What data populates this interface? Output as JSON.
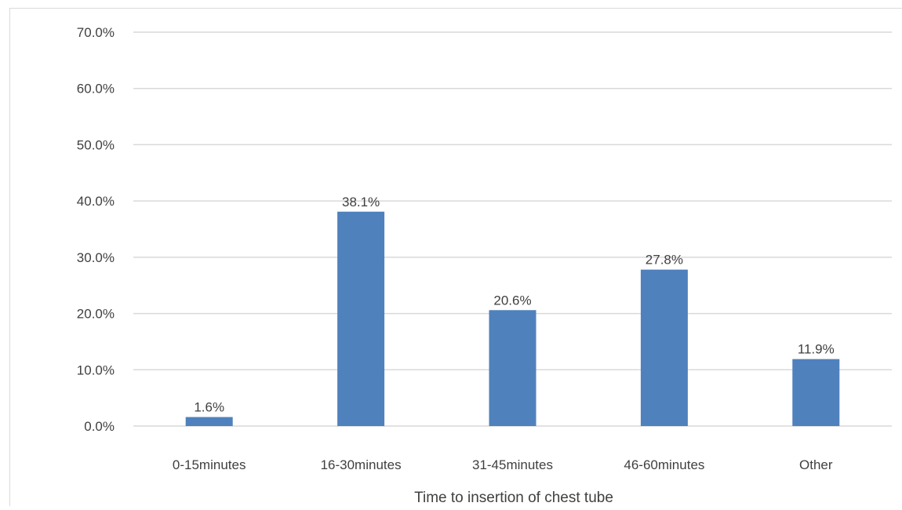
{
  "chart_data": {
    "type": "bar",
    "title": "",
    "xlabel": "Time to insertion of chest tube",
    "ylabel": "",
    "categories": [
      "0-15minutes",
      "16-30minutes",
      "31-45minutes",
      "46-60minutes",
      "Other"
    ],
    "values": [
      1.6,
      38.1,
      20.6,
      27.8,
      11.9
    ],
    "data_labels": [
      "1.6%",
      "38.1%",
      "20.6%",
      "27.8%",
      "11.9%"
    ],
    "ylim": [
      0,
      70
    ],
    "yticks": [
      0,
      10,
      20,
      30,
      40,
      50,
      60,
      70
    ],
    "ytick_labels": [
      "0.0%",
      "10.0%",
      "20.0%",
      "30.0%",
      "40.0%",
      "50.0%",
      "60.0%",
      "70.0%"
    ],
    "grid": true,
    "legend": "none",
    "colors": {
      "bar": "#4f81bd",
      "grid": "#d9d9d9",
      "text": "#404040"
    }
  }
}
